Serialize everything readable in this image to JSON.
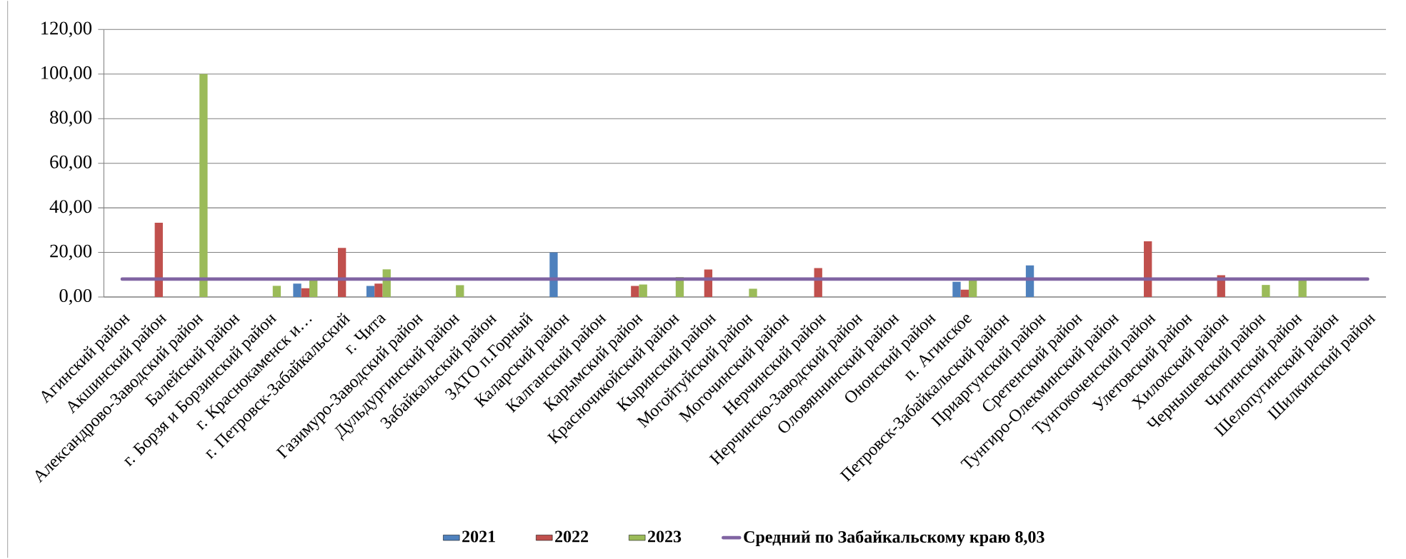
{
  "chart_data": {
    "type": "bar",
    "categories": [
      "Агинский район",
      "Акшинский район",
      "Александрово-Заводский район",
      "Балейский район",
      "г. Борзя и Борзинский район",
      "г. Краснокаменск и…",
      "г. Петровск-Забайкальский",
      "г. Чита",
      "Газимуро-Заводский район",
      "Дульдургинский район",
      "Забайкальский район",
      "ЗАТО п.Горный",
      "Каларский район",
      "Калганский район",
      "Карымский район",
      "Красночикойский район",
      "Кыринский район",
      "Могойтуйский район",
      "Могочинский район",
      "Нерчинский район",
      "Нерчинско-Заводский район",
      "Оловяннинский район",
      "Ононский район",
      "п. Агинское",
      "Петровск-Забайкальский район",
      "Приаргунский район",
      "Сретенский район",
      "Тунгиро-Олекминский район",
      "Тунгокоченский район",
      "Улетовский район",
      "Хилокский район",
      "Чернышевский район",
      "Читинский район",
      "Шелопугинский район",
      "Шилкинский район"
    ],
    "series": [
      {
        "name": "2021",
        "color": "#4f81bd",
        "values": [
          0,
          0,
          0,
          0,
          0,
          6.0,
          0,
          5.0,
          0,
          0,
          0,
          0,
          20.0,
          0,
          0,
          0,
          0,
          0,
          0,
          0,
          0,
          0,
          0,
          6.8,
          0,
          14.2,
          0,
          0,
          0,
          0,
          0,
          0,
          0,
          0,
          0
        ]
      },
      {
        "name": "2022",
        "color": "#c0504d",
        "values": [
          0,
          33.3,
          0,
          0,
          0,
          3.9,
          22.0,
          6.0,
          0,
          0,
          0,
          0,
          0,
          0,
          5.0,
          0,
          12.3,
          0,
          0,
          13.0,
          0,
          0,
          0,
          3.3,
          0,
          0,
          0,
          0,
          25.0,
          0,
          9.8,
          0,
          0,
          0,
          0
        ]
      },
      {
        "name": "2023",
        "color": "#9bbb59",
        "values": [
          0,
          0,
          100.0,
          0,
          5.0,
          7.4,
          0,
          12.4,
          0,
          5.3,
          0,
          0,
          0,
          0,
          5.6,
          8.9,
          0,
          3.7,
          0,
          0,
          0,
          0,
          0,
          7.5,
          0,
          0,
          0,
          0,
          0,
          0,
          0,
          5.4,
          7.5,
          0,
          0
        ]
      },
      {
        "name": "Средний по Забайкальскому краю  8,03",
        "color": "#8064a2",
        "type": "line",
        "values": [
          8.03,
          8.03,
          8.03,
          8.03,
          8.03,
          8.03,
          8.03,
          8.03,
          8.03,
          8.03,
          8.03,
          8.03,
          8.03,
          8.03,
          8.03,
          8.03,
          8.03,
          8.03,
          8.03,
          8.03,
          8.03,
          8.03,
          8.03,
          8.03,
          8.03,
          8.03,
          8.03,
          8.03,
          8.03,
          8.03,
          8.03,
          8.03,
          8.03,
          8.03,
          8.03
        ]
      }
    ],
    "ylim": [
      0,
      120
    ],
    "yticks": [
      {
        "value": 0,
        "label": "0,00"
      },
      {
        "value": 20,
        "label": "20,00"
      },
      {
        "value": 40,
        "label": "40,00"
      },
      {
        "value": 60,
        "label": "60,00"
      },
      {
        "value": 80,
        "label": "80,00"
      },
      {
        "value": 100,
        "label": "100,00"
      },
      {
        "value": 120,
        "label": "120,00"
      }
    ],
    "grid": "y",
    "legend": "bottom",
    "marker": "none",
    "line_style": "solid"
  }
}
